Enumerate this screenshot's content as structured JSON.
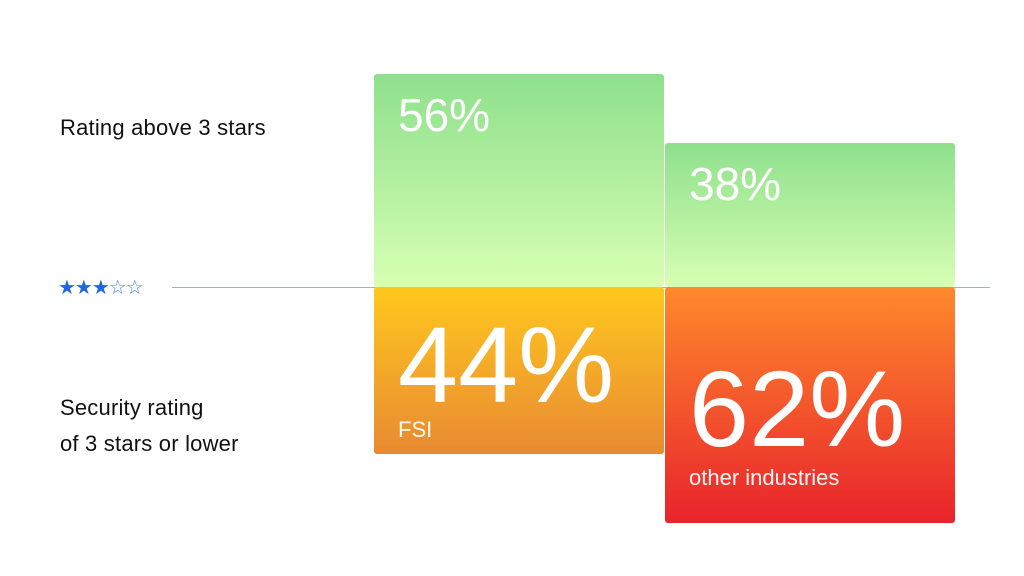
{
  "labels": {
    "above": "Rating above 3 stars",
    "below": "Security rating\nof 3 stars or lower"
  },
  "stars": {
    "filled": "★★★",
    "empty": "☆☆",
    "color": "#1f66e5"
  },
  "chart_data": {
    "type": "bar",
    "categories": [
      "FSI",
      "other industries"
    ],
    "series": [
      {
        "name": "Rating above 3 stars",
        "values": [
          56,
          38
        ],
        "labels": [
          "56%",
          "38%"
        ]
      },
      {
        "name": "Security rating of 3 stars or lower",
        "values": [
          44,
          62
        ],
        "labels": [
          "44%",
          "62%"
        ]
      }
    ],
    "ylim": [
      0,
      100
    ],
    "colors": {
      "above": [
        "#8ee08c",
        "#d7ffb4"
      ],
      "fsi_below": [
        "#ffc81e",
        "#e88a32"
      ],
      "other_below": [
        "#ff8a2c",
        "#e8232c"
      ]
    }
  }
}
